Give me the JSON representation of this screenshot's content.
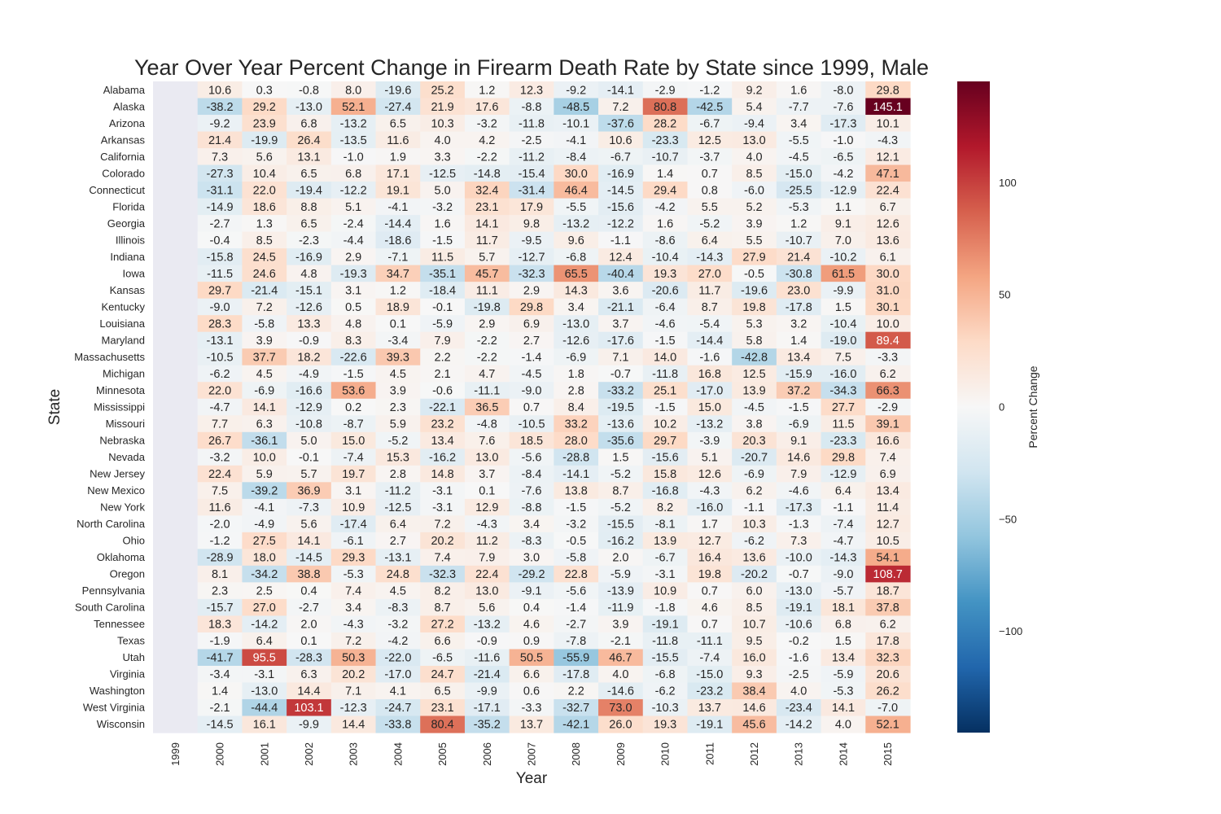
{
  "chart_data": {
    "type": "heatmap",
    "title": "Year Over Year Percent Change in Firearm Death Rate by State since 1999, Male",
    "xlabel": "Year",
    "ylabel": "State",
    "colorbar_label": "Percent Change",
    "colorbar_range": [
      -145.1,
      145.1
    ],
    "colorbar_ticks": [
      100,
      50,
      0,
      -50,
      -100
    ],
    "colormap": "RdBu_r",
    "columns": [
      "1999",
      "2000",
      "2001",
      "2002",
      "2003",
      "2004",
      "2005",
      "2006",
      "2007",
      "2008",
      "2009",
      "2010",
      "2011",
      "2012",
      "2013",
      "2014",
      "2015"
    ],
    "rows": [
      "Alabama",
      "Alaska",
      "Arizona",
      "Arkansas",
      "California",
      "Colorado",
      "Connecticut",
      "Florida",
      "Georgia",
      "Illinois",
      "Indiana",
      "Iowa",
      "Kansas",
      "Kentucky",
      "Louisiana",
      "Maryland",
      "Massachusetts",
      "Michigan",
      "Minnesota",
      "Mississippi",
      "Missouri",
      "Nebraska",
      "Nevada",
      "New Jersey",
      "New Mexico",
      "New York",
      "North Carolina",
      "Ohio",
      "Oklahoma",
      "Oregon",
      "Pennsylvania",
      "South Carolina",
      "Tennessee",
      "Texas",
      "Utah",
      "Virginia",
      "Washington",
      "West Virginia",
      "Wisconsin"
    ],
    "values": [
      [
        null,
        10.6,
        0.3,
        -0.8,
        8.0,
        -19.6,
        25.2,
        1.2,
        12.3,
        -9.2,
        -14.1,
        -2.9,
        -1.2,
        9.2,
        1.6,
        -8.0,
        29.8
      ],
      [
        null,
        -38.2,
        29.2,
        -13.0,
        52.1,
        -27.4,
        21.9,
        17.6,
        -8.8,
        -48.5,
        7.2,
        80.8,
        -42.5,
        5.4,
        -7.7,
        -7.6,
        145.1
      ],
      [
        null,
        -9.2,
        23.9,
        6.8,
        -13.2,
        6.5,
        10.3,
        -3.2,
        -11.8,
        -10.1,
        -37.6,
        28.2,
        -6.7,
        -9.4,
        3.4,
        -17.3,
        10.1
      ],
      [
        null,
        21.4,
        -19.9,
        26.4,
        -13.5,
        11.6,
        4.0,
        4.2,
        -2.5,
        -4.1,
        10.6,
        -23.3,
        12.5,
        13.0,
        -5.5,
        -1.0,
        -4.3
      ],
      [
        null,
        7.3,
        5.6,
        13.1,
        -1.0,
        1.9,
        3.3,
        -2.2,
        -11.2,
        -8.4,
        -6.7,
        -10.7,
        -3.7,
        4.0,
        -4.5,
        -6.5,
        12.1
      ],
      [
        null,
        -27.3,
        10.4,
        6.5,
        6.8,
        17.1,
        -12.5,
        -14.8,
        -15.4,
        30.0,
        -16.9,
        1.4,
        0.7,
        8.5,
        -15.0,
        -4.2,
        47.1
      ],
      [
        null,
        -31.1,
        22.0,
        -19.4,
        -12.2,
        19.1,
        5.0,
        32.4,
        -31.4,
        46.4,
        -14.5,
        29.4,
        0.8,
        -6.0,
        -25.5,
        -12.9,
        22.4
      ],
      [
        null,
        -14.9,
        18.6,
        8.8,
        5.1,
        -4.1,
        -3.2,
        23.1,
        17.9,
        -5.5,
        -15.6,
        -4.2,
        5.5,
        5.2,
        -5.3,
        1.1,
        6.7
      ],
      [
        null,
        -2.7,
        1.3,
        6.5,
        -2.4,
        -14.4,
        1.6,
        14.1,
        9.8,
        -13.2,
        -12.2,
        1.6,
        -5.2,
        3.9,
        1.2,
        9.1,
        12.6
      ],
      [
        null,
        -0.4,
        8.5,
        -2.3,
        -4.4,
        -18.6,
        -1.5,
        11.7,
        -9.5,
        9.6,
        -1.1,
        -8.6,
        6.4,
        5.5,
        -10.7,
        7.0,
        13.6
      ],
      [
        null,
        -15.8,
        24.5,
        -16.9,
        2.9,
        -7.1,
        11.5,
        5.7,
        -12.7,
        -6.8,
        12.4,
        -10.4,
        -14.3,
        27.9,
        21.4,
        -10.2,
        6.1
      ],
      [
        null,
        -11.5,
        24.6,
        4.8,
        -19.3,
        34.7,
        -35.1,
        45.7,
        -32.3,
        65.5,
        -40.4,
        19.3,
        27.0,
        -0.5,
        -30.8,
        61.5,
        30.0
      ],
      [
        null,
        29.7,
        -21.4,
        -15.1,
        3.1,
        1.2,
        -18.4,
        11.1,
        2.9,
        14.3,
        3.6,
        -20.6,
        11.7,
        -19.6,
        23.0,
        -9.9,
        31.0
      ],
      [
        null,
        -9.0,
        7.2,
        -12.6,
        0.5,
        18.9,
        -0.1,
        -19.8,
        29.8,
        3.4,
        -21.1,
        -6.4,
        8.7,
        19.8,
        -17.8,
        1.5,
        30.1
      ],
      [
        null,
        28.3,
        -5.8,
        13.3,
        4.8,
        0.1,
        -5.9,
        2.9,
        6.9,
        -13.0,
        3.7,
        -4.6,
        -5.4,
        5.3,
        3.2,
        -10.4,
        10.0
      ],
      [
        null,
        -13.1,
        3.9,
        -0.9,
        8.3,
        -3.4,
        7.9,
        -2.2,
        2.7,
        -12.6,
        -17.6,
        -1.5,
        -14.4,
        5.8,
        1.4,
        -19.0,
        89.4
      ],
      [
        null,
        -10.5,
        37.7,
        18.2,
        -22.6,
        39.3,
        2.2,
        -2.2,
        -1.4,
        -6.9,
        7.1,
        14.0,
        -1.6,
        -42.8,
        13.4,
        7.5,
        -3.3
      ],
      [
        null,
        -6.2,
        4.5,
        -4.9,
        -1.5,
        4.5,
        2.1,
        4.7,
        -4.5,
        1.8,
        -0.7,
        -11.8,
        16.8,
        12.5,
        -15.9,
        -16.0,
        6.2
      ],
      [
        null,
        22.0,
        -6.9,
        -16.6,
        53.6,
        3.9,
        -0.6,
        -11.1,
        -9.0,
        2.8,
        -33.2,
        25.1,
        -17.0,
        13.9,
        37.2,
        -34.3,
        66.3
      ],
      [
        null,
        -4.7,
        14.1,
        -12.9,
        0.2,
        2.3,
        -22.1,
        36.5,
        0.7,
        8.4,
        -19.5,
        -1.5,
        15.0,
        -4.5,
        -1.5,
        27.7,
        -2.9
      ],
      [
        null,
        7.7,
        6.3,
        -10.8,
        -8.7,
        5.9,
        23.2,
        -4.8,
        -10.5,
        33.2,
        -13.6,
        10.2,
        -13.2,
        3.8,
        -6.9,
        11.5,
        39.1
      ],
      [
        null,
        26.7,
        -36.1,
        5.0,
        15.0,
        -5.2,
        13.4,
        7.6,
        18.5,
        28.0,
        -35.6,
        29.7,
        -3.9,
        20.3,
        9.1,
        -23.3,
        16.6
      ],
      [
        null,
        -3.2,
        10.0,
        -0.1,
        -7.4,
        15.3,
        -16.2,
        13.0,
        -5.6,
        -28.8,
        1.5,
        -15.6,
        5.1,
        -20.7,
        14.6,
        29.8,
        7.4
      ],
      [
        null,
        22.4,
        5.9,
        5.7,
        19.7,
        2.8,
        14.8,
        3.7,
        -8.4,
        -14.1,
        -5.2,
        15.8,
        12.6,
        -6.9,
        7.9,
        -12.9,
        6.9
      ],
      [
        null,
        7.5,
        -39.2,
        36.9,
        3.1,
        -11.2,
        -3.1,
        0.1,
        -7.6,
        13.8,
        8.7,
        -16.8,
        -4.3,
        6.2,
        -4.6,
        6.4,
        13.4
      ],
      [
        null,
        11.6,
        -4.1,
        -7.3,
        10.9,
        -12.5,
        -3.1,
        12.9,
        -8.8,
        -1.5,
        -5.2,
        8.2,
        -16.0,
        -1.1,
        -17.3,
        -1.1,
        11.4
      ],
      [
        null,
        -2.0,
        -4.9,
        5.6,
        -17.4,
        6.4,
        7.2,
        -4.3,
        3.4,
        -3.2,
        -15.5,
        -8.1,
        1.7,
        10.3,
        -1.3,
        -7.4,
        12.7
      ],
      [
        null,
        -1.2,
        27.5,
        14.1,
        -6.1,
        2.7,
        20.2,
        11.2,
        -8.3,
        -0.5,
        -16.2,
        13.9,
        12.7,
        -6.2,
        7.3,
        -4.7,
        10.5
      ],
      [
        null,
        -28.9,
        18.0,
        -14.5,
        29.3,
        -13.1,
        7.4,
        7.9,
        3.0,
        -5.8,
        2.0,
        -6.7,
        16.4,
        13.6,
        -10.0,
        -14.3,
        54.1
      ],
      [
        null,
        8.1,
        -34.2,
        38.8,
        -5.3,
        24.8,
        -32.3,
        22.4,
        -29.2,
        22.8,
        -5.9,
        -3.1,
        19.8,
        -20.2,
        -0.7,
        -9.0,
        108.7
      ],
      [
        null,
        2.3,
        2.5,
        0.4,
        7.4,
        4.5,
        8.2,
        13.0,
        -9.1,
        -5.6,
        -13.9,
        10.9,
        0.7,
        6.0,
        -13.0,
        -5.7,
        18.7
      ],
      [
        null,
        -15.7,
        27.0,
        -2.7,
        3.4,
        -8.3,
        8.7,
        5.6,
        0.4,
        -1.4,
        -11.9,
        -1.8,
        4.6,
        8.5,
        -19.1,
        18.1,
        37.8
      ],
      [
        null,
        18.3,
        -14.2,
        2.0,
        -4.3,
        -3.2,
        27.2,
        -13.2,
        4.6,
        -2.7,
        3.9,
        -19.1,
        0.7,
        10.7,
        -10.6,
        6.8,
        6.2
      ],
      [
        null,
        -1.9,
        6.4,
        0.1,
        7.2,
        -4.2,
        6.6,
        -0.9,
        0.9,
        -7.8,
        -2.1,
        -11.8,
        -11.1,
        9.5,
        -0.2,
        1.5,
        17.8
      ],
      [
        null,
        -41.7,
        95.5,
        -28.3,
        50.3,
        -22.0,
        -6.5,
        -11.6,
        50.5,
        -55.9,
        46.7,
        -15.5,
        -7.4,
        16.0,
        -1.6,
        13.4,
        32.3
      ],
      [
        null,
        -3.4,
        -3.1,
        6.3,
        20.2,
        -17.0,
        24.7,
        -21.4,
        6.6,
        -17.8,
        4.0,
        -6.8,
        -15.0,
        9.3,
        -2.5,
        -5.9,
        20.6
      ],
      [
        null,
        1.4,
        -13.0,
        14.4,
        7.1,
        4.1,
        6.5,
        -9.9,
        0.6,
        2.2,
        -14.6,
        -6.2,
        -23.2,
        38.4,
        4.0,
        -5.3,
        26.2
      ],
      [
        null,
        -2.1,
        -44.4,
        103.1,
        -12.3,
        -24.7,
        23.1,
        -17.1,
        -3.3,
        -32.7,
        73.0,
        -10.3,
        13.7,
        14.6,
        -23.4,
        14.1,
        -7.0
      ],
      [
        null,
        -14.5,
        16.1,
        -9.9,
        14.4,
        -33.8,
        80.4,
        -35.2,
        13.7,
        -42.1,
        26.0,
        19.3,
        -19.1,
        45.6,
        -14.2,
        4.0,
        52.1
      ]
    ]
  }
}
